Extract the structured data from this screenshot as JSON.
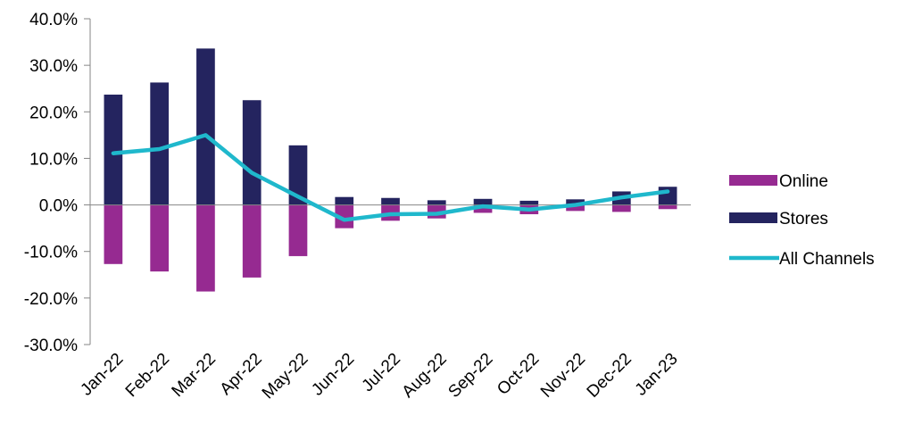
{
  "chart_data": {
    "type": "bar",
    "stacked": true,
    "categories": [
      "Jan-22",
      "Feb-22",
      "Mar-22",
      "Apr-22",
      "May-22",
      "Jun-22",
      "Jul-22",
      "Aug-22",
      "Sep-22",
      "Oct-22",
      "Nov-22",
      "Dec-22",
      "Jan-23"
    ],
    "series": [
      {
        "name": "Online",
        "type": "bar",
        "color": "#962a91",
        "values": [
          -12.7,
          -14.3,
          -18.6,
          -15.6,
          -11.0,
          -5.0,
          -3.4,
          -2.9,
          -1.7,
          -2.0,
          -1.3,
          -1.5,
          -0.9
        ]
      },
      {
        "name": "Stores",
        "type": "bar",
        "color": "#24245f",
        "values": [
          23.7,
          26.3,
          33.6,
          22.5,
          12.8,
          1.7,
          1.5,
          1.0,
          1.3,
          0.9,
          1.2,
          2.9,
          3.9
        ]
      },
      {
        "name": "All Channels",
        "type": "line",
        "color": "#1fb8cc",
        "values": [
          11.1,
          12.0,
          15.0,
          6.9,
          1.8,
          -3.2,
          -2.0,
          -1.9,
          -0.3,
          -1.0,
          0.0,
          1.6,
          2.9
        ]
      }
    ],
    "ylim": [
      -30,
      40
    ],
    "yticks": [
      "40.0%",
      "30.0%",
      "20.0%",
      "10.0%",
      "0.0%",
      "-10.0%",
      "-20.0%",
      "-30.0%"
    ],
    "ytick_values": [
      40,
      30,
      20,
      10,
      0,
      -10,
      -20,
      -30
    ],
    "legend_position": "right",
    "grid": false,
    "title": "",
    "xlabel": "",
    "ylabel": ""
  }
}
